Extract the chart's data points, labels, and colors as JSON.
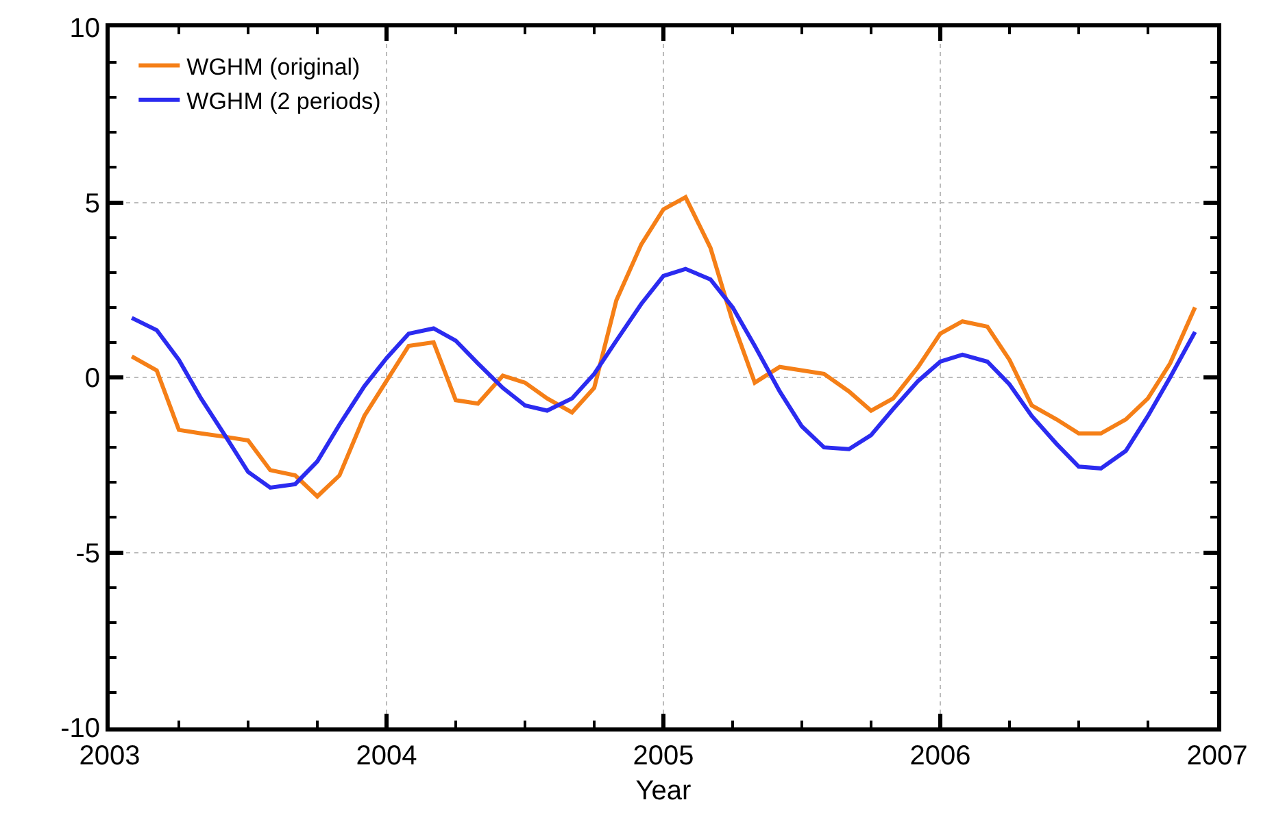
{
  "chart_data": {
    "type": "line",
    "xlabel": "Year",
    "x": [
      2003.08,
      2003.17,
      2003.25,
      2003.33,
      2003.42,
      2003.5,
      2003.58,
      2003.67,
      2003.75,
      2003.83,
      2003.92,
      2004.0,
      2004.08,
      2004.17,
      2004.25,
      2004.33,
      2004.42,
      2004.5,
      2004.58,
      2004.67,
      2004.75,
      2004.83,
      2004.92,
      2005.0,
      2005.08,
      2005.17,
      2005.25,
      2005.33,
      2005.42,
      2005.5,
      2005.58,
      2005.67,
      2005.75,
      2005.83,
      2005.92,
      2006.0,
      2006.08,
      2006.17,
      2006.25,
      2006.33,
      2006.42,
      2006.5,
      2006.58,
      2006.67,
      2006.75,
      2006.83,
      2006.92
    ],
    "series": [
      {
        "name": "WGHM (original)",
        "color": "#f57f17",
        "values": [
          0.6,
          0.2,
          -1.5,
          -1.6,
          -1.7,
          -1.8,
          -2.65,
          -2.8,
          -3.4,
          -2.8,
          -1.1,
          -0.1,
          0.9,
          1.0,
          -0.65,
          -0.75,
          0.05,
          -0.15,
          -0.6,
          -1.0,
          -0.3,
          2.2,
          3.8,
          4.8,
          5.15,
          3.7,
          1.6,
          -0.15,
          0.3,
          0.2,
          0.1,
          -0.4,
          -0.95,
          -0.6,
          0.3,
          1.25,
          1.6,
          1.45,
          0.5,
          -0.8,
          -1.2,
          -1.6,
          -1.6,
          -1.2,
          -0.6,
          0.4,
          2.0
        ]
      },
      {
        "name": "WGHM (2 periods)",
        "color": "#2b2bf0",
        "values": [
          1.7,
          1.35,
          0.5,
          -0.6,
          -1.7,
          -2.7,
          -3.15,
          -3.05,
          -2.4,
          -1.35,
          -0.25,
          0.55,
          1.25,
          1.4,
          1.05,
          0.4,
          -0.3,
          -0.8,
          -0.95,
          -0.6,
          0.1,
          1.05,
          2.1,
          2.9,
          3.1,
          2.8,
          2.0,
          0.9,
          -0.4,
          -1.4,
          -2.0,
          -2.05,
          -1.65,
          -0.9,
          -0.1,
          0.45,
          0.65,
          0.45,
          -0.2,
          -1.1,
          -1.9,
          -2.55,
          -2.6,
          -2.1,
          -1.1,
          0.0,
          1.3
        ]
      }
    ],
    "xlim": [
      2003,
      2007
    ],
    "xticks": [
      2003,
      2004,
      2005,
      2006,
      2007
    ],
    "ylim": [
      -10,
      10
    ],
    "yticks": [
      -10,
      -5,
      0,
      5,
      10
    ],
    "grid": true,
    "legend": "top left",
    "marker": "none",
    "line_style": "solid"
  }
}
